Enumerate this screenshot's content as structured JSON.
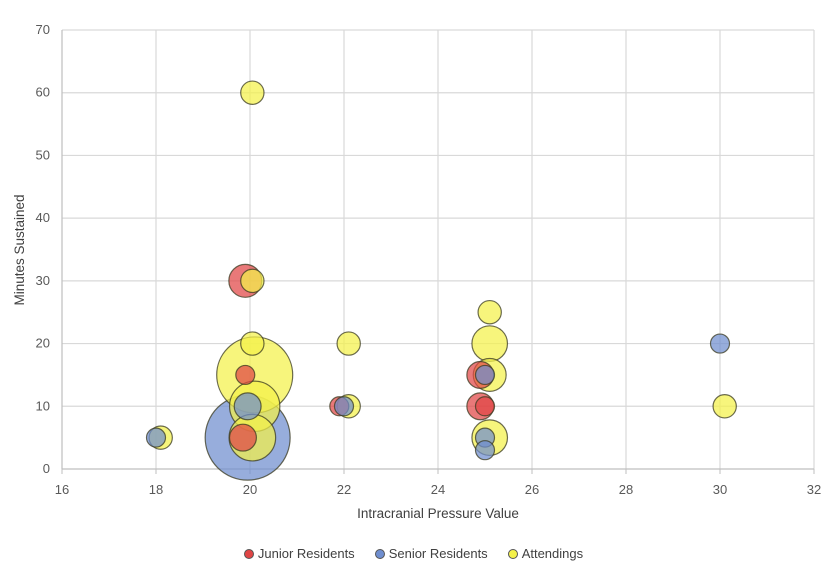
{
  "chart_data": {
    "type": "bubble",
    "xlabel": "Intracranial Pressure Value",
    "ylabel": "Minutes Sustained",
    "xlim": [
      16,
      32
    ],
    "ylim": [
      0,
      70
    ],
    "x_ticks": [
      16,
      18,
      20,
      22,
      24,
      26,
      28,
      30,
      32
    ],
    "y_ticks": [
      0,
      10,
      20,
      30,
      40,
      50,
      60,
      70
    ],
    "grid": true,
    "legend_position": "bottom",
    "series": [
      {
        "name": "Junior Residents",
        "color": "#e04545",
        "points": [
          {
            "x": 19.9,
            "y": 30,
            "size": 3
          },
          {
            "x": 19.9,
            "y": 15,
            "size": 1
          },
          {
            "x": 19.85,
            "y": 5,
            "size": 2
          },
          {
            "x": 21.9,
            "y": 10,
            "size": 1
          },
          {
            "x": 24.9,
            "y": 15,
            "size": 2
          },
          {
            "x": 24.9,
            "y": 10,
            "size": 2
          },
          {
            "x": 25.0,
            "y": 10,
            "size": 1
          }
        ]
      },
      {
        "name": "Senior Residents",
        "color": "#6f8ecf",
        "points": [
          {
            "x": 18.0,
            "y": 5,
            "size": 1
          },
          {
            "x": 19.95,
            "y": 5,
            "size": 20
          },
          {
            "x": 19.95,
            "y": 10,
            "size": 2
          },
          {
            "x": 22.0,
            "y": 10,
            "size": 1
          },
          {
            "x": 25.0,
            "y": 15,
            "size": 1
          },
          {
            "x": 25.0,
            "y": 5,
            "size": 1
          },
          {
            "x": 25.0,
            "y": 3,
            "size": 1
          },
          {
            "x": 30.0,
            "y": 20,
            "size": 1
          }
        ]
      },
      {
        "name": "Attendings",
        "color": "#f4f14a",
        "points": [
          {
            "x": 20.05,
            "y": 60,
            "size": 1.5
          },
          {
            "x": 20.05,
            "y": 30,
            "size": 1.5
          },
          {
            "x": 20.05,
            "y": 20,
            "size": 1.5
          },
          {
            "x": 20.1,
            "y": 15,
            "size": 16
          },
          {
            "x": 20.1,
            "y": 10,
            "size": 7
          },
          {
            "x": 20.05,
            "y": 5,
            "size": 6
          },
          {
            "x": 18.1,
            "y": 5,
            "size": 1.5
          },
          {
            "x": 22.1,
            "y": 20,
            "size": 1.5
          },
          {
            "x": 22.1,
            "y": 10,
            "size": 1.5
          },
          {
            "x": 25.1,
            "y": 25,
            "size": 1.5
          },
          {
            "x": 25.1,
            "y": 20,
            "size": 3.5
          },
          {
            "x": 25.1,
            "y": 15,
            "size": 3
          },
          {
            "x": 25.1,
            "y": 5,
            "size": 3.5
          },
          {
            "x": 30.1,
            "y": 10,
            "size": 1.5
          }
        ]
      }
    ]
  }
}
